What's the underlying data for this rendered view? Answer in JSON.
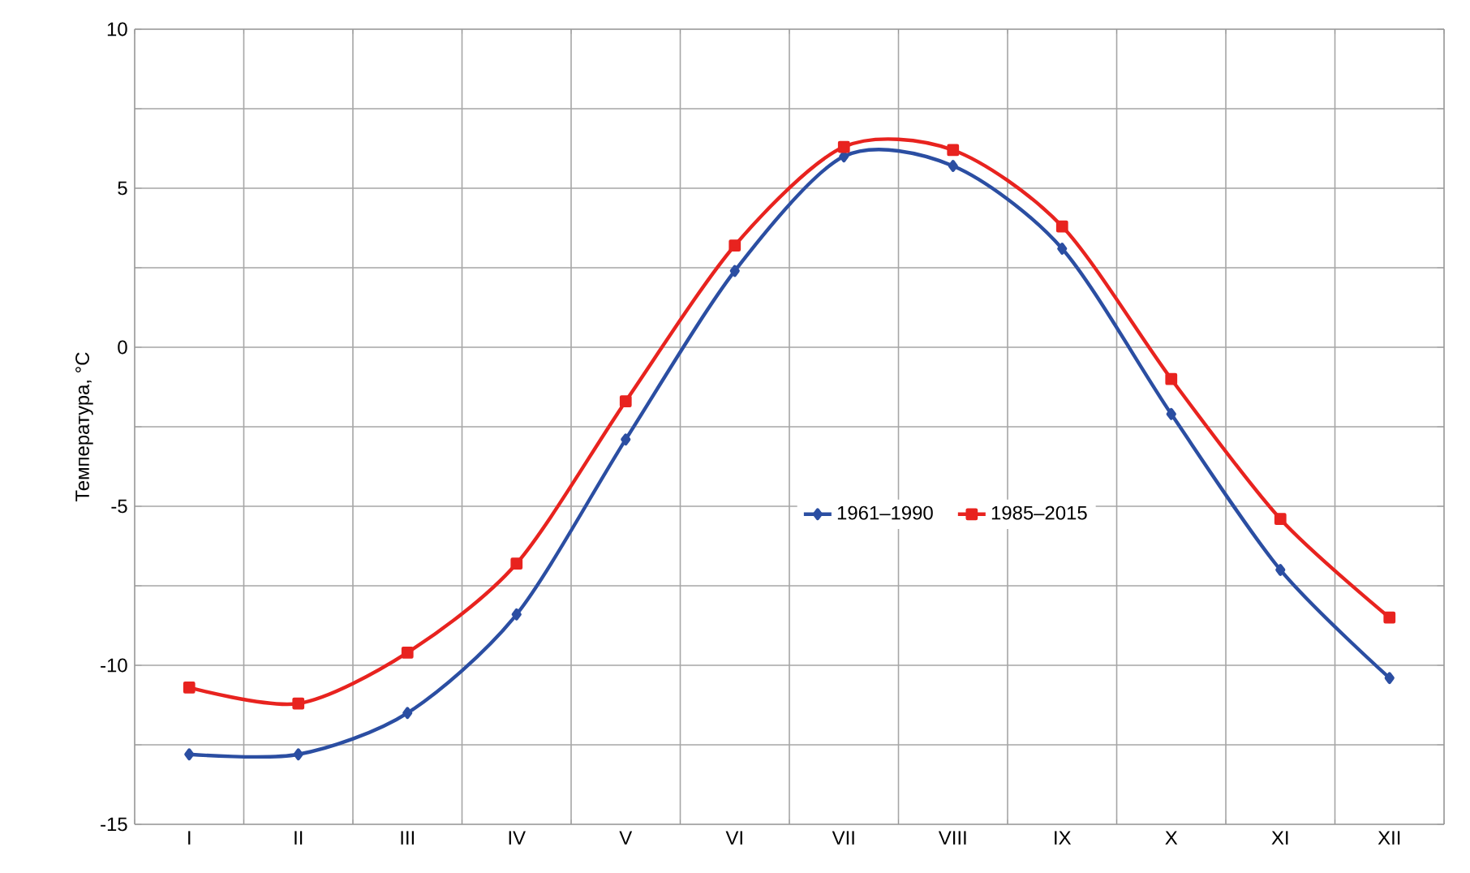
{
  "chart_data": {
    "type": "line",
    "ylabel": "Температура, °C",
    "categories": [
      "I",
      "II",
      "III",
      "IV",
      "V",
      "VI",
      "VII",
      "VIII",
      "IX",
      "X",
      "XI",
      "XII"
    ],
    "series": [
      {
        "name": "1961–1990",
        "color": "#2b4ea2",
        "marker": "diamond",
        "values": [
          -12.8,
          -12.8,
          -11.5,
          -8.4,
          -2.9,
          2.4,
          6.0,
          5.7,
          3.1,
          -2.1,
          -7.0,
          -10.4
        ]
      },
      {
        "name": "1985–2015",
        "color": "#e8231f",
        "marker": "square",
        "values": [
          -10.7,
          -11.2,
          -9.6,
          -6.8,
          -1.7,
          3.2,
          6.3,
          6.2,
          3.8,
          -1.0,
          -5.4,
          -8.5
        ]
      }
    ],
    "ylim": [
      -15,
      10
    ],
    "yticks": [
      -15,
      {
        "value": -12.5,
        "label": null
      },
      -10,
      {
        "value": -7.5,
        "label": null
      },
      -5,
      {
        "value": -2.5,
        "label": null
      },
      0,
      {
        "value": 2.5,
        "label": null
      },
      5,
      {
        "value": 7.5,
        "label": null
      },
      10
    ],
    "grid": true,
    "legend": "center",
    "line_style": "solid"
  }
}
